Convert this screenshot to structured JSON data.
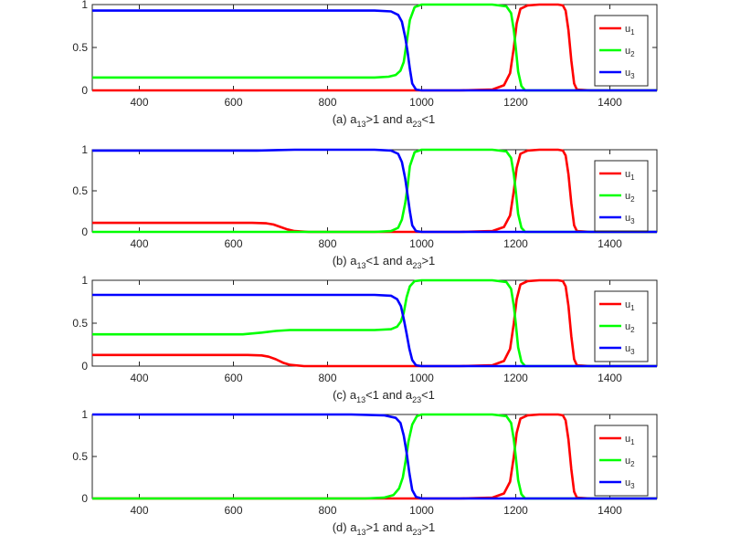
{
  "chart_data": [
    {
      "type": "line",
      "caption": {
        "pre": "(a) a",
        "s1": "13",
        "mid": ">1 and a",
        "s2": "23",
        "post": "<1"
      },
      "xlim": [
        300,
        1500
      ],
      "ylim": [
        0,
        1
      ],
      "xticks": [
        400,
        600,
        800,
        1000,
        1200,
        1400
      ],
      "yticks": [
        0,
        0.5,
        1
      ],
      "ytick_labels": [
        "0",
        "0.5",
        "1"
      ],
      "legend": [
        {
          "base": "u",
          "sub": "1",
          "color": "#ff0000"
        },
        {
          "base": "u",
          "sub": "2",
          "color": "#00ff00"
        },
        {
          "base": "u",
          "sub": "3",
          "color": "#0000ff"
        }
      ],
      "series": [
        {
          "name": "u1",
          "color": "#ff0000",
          "x": [
            300,
            1080,
            1150,
            1175,
            1188,
            1196,
            1202,
            1210,
            1225,
            1250,
            1290,
            1300,
            1306,
            1312,
            1318,
            1324,
            1330,
            1360,
            1500
          ],
          "y": [
            0,
            0,
            0.01,
            0.06,
            0.2,
            0.5,
            0.78,
            0.95,
            0.99,
            1,
            1,
            0.99,
            0.93,
            0.7,
            0.35,
            0.08,
            0.01,
            0,
            0
          ]
        },
        {
          "name": "u2",
          "color": "#00ff00",
          "x": [
            300,
            900,
            930,
            945,
            955,
            962,
            968,
            975,
            985,
            1000,
            1150,
            1180,
            1190,
            1196,
            1200,
            1205,
            1212,
            1220,
            1500
          ],
          "y": [
            0.15,
            0.15,
            0.16,
            0.18,
            0.23,
            0.33,
            0.55,
            0.82,
            0.97,
            1,
            1,
            0.98,
            0.9,
            0.7,
            0.5,
            0.22,
            0.05,
            0,
            0
          ]
        },
        {
          "name": "u3",
          "color": "#0000ff",
          "x": [
            300,
            900,
            935,
            950,
            958,
            965,
            970,
            975,
            980,
            988,
            1000,
            1500
          ],
          "y": [
            0.93,
            0.93,
            0.92,
            0.88,
            0.8,
            0.62,
            0.45,
            0.25,
            0.08,
            0.01,
            0,
            0
          ]
        }
      ]
    },
    {
      "type": "line",
      "caption": {
        "pre": "(b) a",
        "s1": "13",
        "mid": "<1 and a",
        "s2": "23",
        "post": ">1"
      },
      "xlim": [
        300,
        1500
      ],
      "ylim": [
        0,
        1
      ],
      "xticks": [
        400,
        600,
        800,
        1000,
        1200,
        1400
      ],
      "yticks": [
        0,
        0.5,
        1
      ],
      "ytick_labels": [
        "0",
        "0.5",
        "1"
      ],
      "legend": [
        {
          "base": "u",
          "sub": "1",
          "color": "#ff0000"
        },
        {
          "base": "u",
          "sub": "2",
          "color": "#00ff00"
        },
        {
          "base": "u",
          "sub": "3",
          "color": "#0000ff"
        }
      ],
      "series": [
        {
          "name": "u1",
          "color": "#ff0000",
          "x": [
            300,
            640,
            670,
            685,
            700,
            715,
            730,
            760,
            1080,
            1150,
            1175,
            1188,
            1196,
            1202,
            1210,
            1225,
            1250,
            1290,
            1300,
            1306,
            1312,
            1318,
            1324,
            1330,
            1360,
            1500
          ],
          "y": [
            0.11,
            0.11,
            0.105,
            0.09,
            0.06,
            0.03,
            0.01,
            0,
            0,
            0.01,
            0.06,
            0.2,
            0.5,
            0.78,
            0.95,
            0.99,
            1,
            1,
            0.99,
            0.93,
            0.7,
            0.35,
            0.08,
            0.01,
            0,
            0
          ]
        },
        {
          "name": "u2",
          "color": "#00ff00",
          "x": [
            300,
            900,
            935,
            950,
            958,
            965,
            970,
            975,
            985,
            1000,
            1150,
            1180,
            1190,
            1196,
            1200,
            1205,
            1212,
            1220,
            1500
          ],
          "y": [
            0,
            0,
            0.01,
            0.05,
            0.15,
            0.35,
            0.55,
            0.8,
            0.97,
            1,
            1,
            0.98,
            0.9,
            0.7,
            0.5,
            0.22,
            0.05,
            0,
            0
          ]
        },
        {
          "name": "u3",
          "color": "#0000ff",
          "x": [
            300,
            650,
            690,
            730,
            900,
            935,
            950,
            958,
            965,
            970,
            975,
            980,
            988,
            1000,
            1500
          ],
          "y": [
            0.99,
            0.99,
            0.995,
            1,
            1,
            0.99,
            0.95,
            0.85,
            0.65,
            0.45,
            0.25,
            0.08,
            0.01,
            0,
            0
          ]
        }
      ]
    },
    {
      "type": "line",
      "caption": {
        "pre": "(c) a",
        "s1": "13",
        "mid": "<1 and a",
        "s2": "23",
        "post": "<1"
      },
      "xlim": [
        300,
        1500
      ],
      "ylim": [
        0,
        1
      ],
      "xticks": [
        400,
        600,
        800,
        1000,
        1200,
        1400
      ],
      "yticks": [
        0,
        0.5,
        1
      ],
      "ytick_labels": [
        "0",
        "0.5",
        "1"
      ],
      "legend": [
        {
          "base": "u",
          "sub": "1",
          "color": "#ff0000"
        },
        {
          "base": "u",
          "sub": "2",
          "color": "#00ff00"
        },
        {
          "base": "u",
          "sub": "3",
          "color": "#0000ff"
        }
      ],
      "series": [
        {
          "name": "u1",
          "color": "#ff0000",
          "x": [
            300,
            630,
            660,
            675,
            690,
            705,
            720,
            750,
            1080,
            1150,
            1175,
            1188,
            1196,
            1202,
            1210,
            1225,
            1250,
            1290,
            1300,
            1306,
            1312,
            1318,
            1324,
            1330,
            1360,
            1500
          ],
          "y": [
            0.13,
            0.13,
            0.125,
            0.11,
            0.08,
            0.04,
            0.015,
            0,
            0,
            0.01,
            0.06,
            0.2,
            0.5,
            0.78,
            0.95,
            0.99,
            1,
            1,
            0.99,
            0.93,
            0.7,
            0.35,
            0.08,
            0.01,
            0,
            0
          ]
        },
        {
          "name": "u2",
          "color": "#00ff00",
          "x": [
            300,
            620,
            660,
            690,
            720,
            900,
            935,
            948,
            956,
            962,
            968,
            975,
            985,
            1000,
            1150,
            1180,
            1190,
            1196,
            1200,
            1205,
            1212,
            1220,
            1500
          ],
          "y": [
            0.37,
            0.37,
            0.39,
            0.41,
            0.42,
            0.42,
            0.43,
            0.46,
            0.52,
            0.62,
            0.8,
            0.93,
            0.99,
            1,
            1,
            0.98,
            0.9,
            0.7,
            0.5,
            0.22,
            0.05,
            0,
            0
          ]
        },
        {
          "name": "u3",
          "color": "#0000ff",
          "x": [
            300,
            900,
            935,
            948,
            956,
            962,
            968,
            974,
            980,
            988,
            1000,
            1500
          ],
          "y": [
            0.83,
            0.83,
            0.82,
            0.78,
            0.7,
            0.55,
            0.38,
            0.2,
            0.07,
            0.01,
            0,
            0
          ]
        }
      ]
    },
    {
      "type": "line",
      "caption": {
        "pre": "(d) a",
        "s1": "13",
        "mid": ">1 and a",
        "s2": "23",
        "post": ">1"
      },
      "xlim": [
        300,
        1500
      ],
      "ylim": [
        0,
        1
      ],
      "xticks": [
        400,
        600,
        800,
        1000,
        1200,
        1400
      ],
      "yticks": [
        0,
        0.5,
        1
      ],
      "ytick_labels": [
        "0",
        "0.5",
        "1"
      ],
      "legend": [
        {
          "base": "u",
          "sub": "1",
          "color": "#ff0000"
        },
        {
          "base": "u",
          "sub": "2",
          "color": "#00ff00"
        },
        {
          "base": "u",
          "sub": "3",
          "color": "#0000ff"
        }
      ],
      "series": [
        {
          "name": "u1",
          "color": "#ff0000",
          "x": [
            300,
            1080,
            1150,
            1175,
            1188,
            1196,
            1202,
            1210,
            1225,
            1250,
            1290,
            1300,
            1306,
            1312,
            1318,
            1324,
            1330,
            1360,
            1500
          ],
          "y": [
            0,
            0,
            0.01,
            0.06,
            0.2,
            0.5,
            0.78,
            0.95,
            0.99,
            1,
            1,
            0.99,
            0.93,
            0.7,
            0.35,
            0.08,
            0.01,
            0,
            0
          ]
        },
        {
          "name": "u2",
          "color": "#00ff00",
          "x": [
            300,
            880,
            920,
            940,
            952,
            960,
            966,
            972,
            980,
            990,
            1000,
            1150,
            1180,
            1190,
            1196,
            1200,
            1205,
            1212,
            1220,
            1500
          ],
          "y": [
            0,
            0,
            0.01,
            0.04,
            0.12,
            0.25,
            0.45,
            0.68,
            0.88,
            0.98,
            1,
            1,
            0.98,
            0.9,
            0.7,
            0.5,
            0.22,
            0.05,
            0,
            0
          ]
        },
        {
          "name": "u3",
          "color": "#0000ff",
          "x": [
            300,
            850,
            920,
            945,
            955,
            962,
            968,
            974,
            980,
            988,
            1000,
            1500
          ],
          "y": [
            1,
            1,
            0.99,
            0.96,
            0.9,
            0.75,
            0.55,
            0.3,
            0.1,
            0.02,
            0,
            0
          ]
        }
      ]
    }
  ]
}
